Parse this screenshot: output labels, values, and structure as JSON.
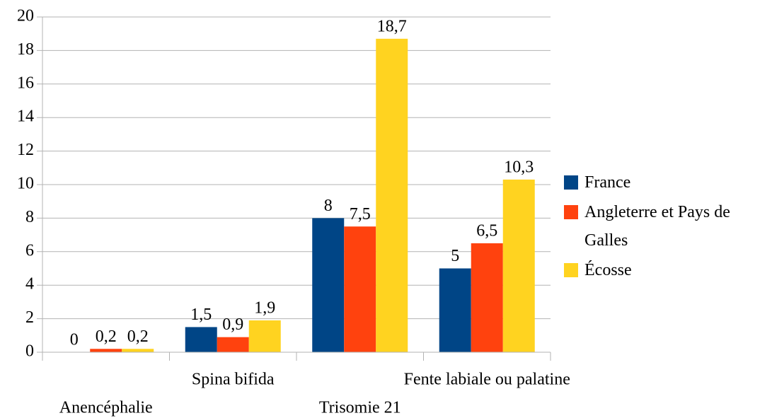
{
  "chart_data": {
    "type": "bar",
    "categories": [
      "Anencéphalie",
      "Spina bifida",
      "Trisomie 21",
      "Fente labiale ou palatine"
    ],
    "series": [
      {
        "name": "France",
        "color": "#004586",
        "values": [
          0,
          1.5,
          8,
          5
        ],
        "value_labels": [
          "0",
          "1,5",
          "8",
          "5"
        ]
      },
      {
        "name": "Angleterre et Pays de Galles",
        "color": "#ff420e",
        "values": [
          0.2,
          0.9,
          7.5,
          6.5
        ],
        "value_labels": [
          "0,2",
          "0,9",
          "7,5",
          "6,5"
        ]
      },
      {
        "name": "Écosse",
        "color": "#ffd320",
        "values": [
          0.2,
          1.9,
          18.7,
          10.3
        ],
        "value_labels": [
          "0,2",
          "1,9",
          "18,7",
          "10,3"
        ]
      }
    ],
    "ylim": [
      0,
      20
    ],
    "yticks": [
      0,
      2,
      4,
      6,
      8,
      10,
      12,
      14,
      16,
      18,
      20
    ],
    "grid": true,
    "legend": "right"
  }
}
